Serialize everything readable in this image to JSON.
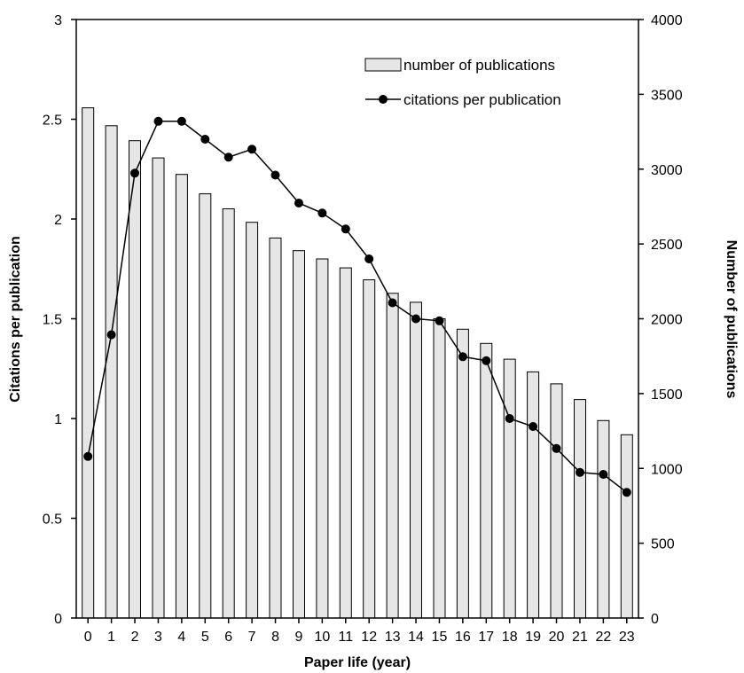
{
  "chart_data": {
    "type": "bar",
    "x": [
      0,
      1,
      2,
      3,
      4,
      5,
      6,
      7,
      8,
      9,
      10,
      11,
      12,
      13,
      14,
      15,
      16,
      17,
      18,
      19,
      20,
      21,
      22,
      23
    ],
    "xlabel": "Paper life (year)",
    "ylabel_left": "Citations per publication",
    "ylabel_right": "Number of publications",
    "ylim_left": [
      0,
      3
    ],
    "yticks_left": [
      "0",
      "0.5",
      "1",
      "1.5",
      "2",
      "2.5",
      "3"
    ],
    "ylim_right": [
      0,
      4000
    ],
    "yticks_right": [
      "0",
      "500",
      "1000",
      "1500",
      "2000",
      "2500",
      "3000",
      "3500",
      "4000"
    ],
    "grid": false,
    "legend_position": "top-right",
    "series": [
      {
        "name": "number of publications",
        "type": "bar",
        "axis": "right",
        "color": "#e6e6e6",
        "values": [
          3410,
          3290,
          3190,
          3075,
          2965,
          2835,
          2735,
          2645,
          2540,
          2455,
          2400,
          2340,
          2260,
          2170,
          2110,
          2000,
          1930,
          1835,
          1730,
          1645,
          1565,
          1460,
          1320,
          1225
        ]
      },
      {
        "name": "citations per publication",
        "type": "line",
        "axis": "left",
        "color": "#000000",
        "values": [
          0.81,
          1.42,
          2.23,
          2.49,
          2.49,
          2.4,
          2.31,
          2.35,
          2.22,
          2.08,
          2.03,
          1.95,
          1.8,
          1.58,
          1.5,
          1.49,
          1.31,
          1.29,
          1.0,
          0.96,
          0.85,
          0.73,
          0.72,
          0.63
        ]
      }
    ]
  }
}
